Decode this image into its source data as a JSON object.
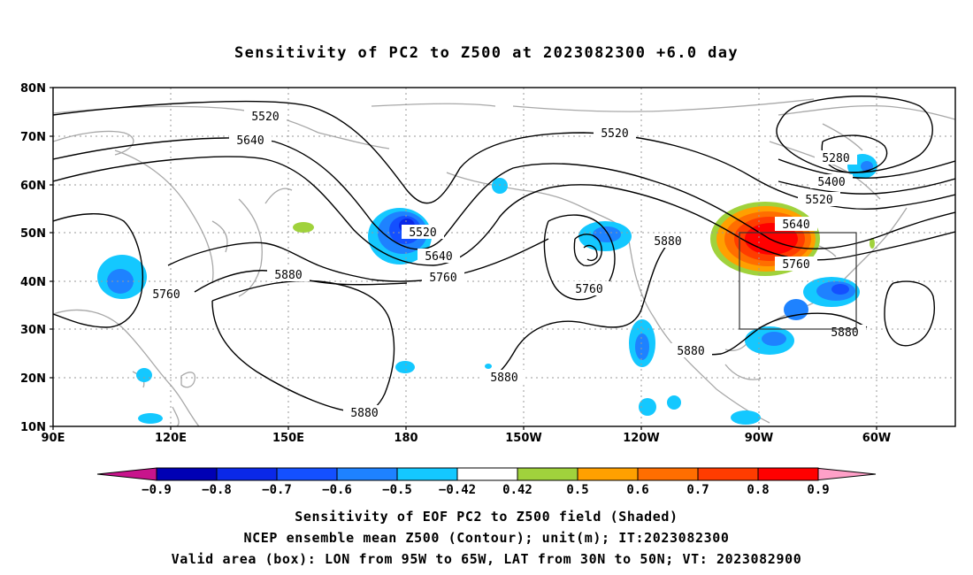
{
  "title": "Sensitivity of PC2 to Z500 at 2023082300 +6.0 day",
  "axes": {
    "lat_labels": [
      "80N",
      "70N",
      "60N",
      "50N",
      "40N",
      "30N",
      "20N",
      "10N"
    ],
    "lon_labels": [
      "90E",
      "120E",
      "150E",
      "180",
      "150W",
      "120W",
      "90W",
      "60W"
    ]
  },
  "contour_labels": {
    "c5520a": "5520",
    "c5640a": "5640",
    "c5520b": "5520",
    "c5520c": "5520",
    "c5640b": "5640",
    "c5760a": "5760",
    "c5760b": "5760",
    "c5760c": "5760",
    "c5880a": "5880",
    "c5880b": "5880",
    "c5880c": "5880",
    "c5880d": "5880",
    "c5880e": "5880",
    "c5880f": "5880",
    "c5280": "5280",
    "c5400": "5400",
    "c5520d": "5520",
    "c5640c": "5640",
    "c5760d": "5760"
  },
  "colorbar": {
    "labels": [
      "−0.9",
      "−0.8",
      "−0.7",
      "−0.6",
      "−0.5",
      "−0.42",
      "0.42",
      "0.5",
      "0.6",
      "0.7",
      "0.8",
      "0.9"
    ],
    "colors": [
      "#0000b4",
      "#0a28e8",
      "#1450ff",
      "#1e82ff",
      "#14c8ff",
      "#ffffff",
      "#a0d23c",
      "#ffa000",
      "#ff6e00",
      "#ff3c00",
      "#ff0000"
    ],
    "low_end_color": "#c8148c",
    "high_end_color": "#ffa0c8"
  },
  "colors": {
    "coastline": "#a8a8a8",
    "grid": "#9a9a9a",
    "contour": "#000000",
    "box": "#333333"
  },
  "caption": {
    "line1": "Sensitivity of EOF PC2 to Z500 field (Shaded)",
    "line2": "NCEP ensemble mean Z500 (Contour); unit(m); IT:2023082300",
    "line3": "Valid area (box): LON from 95W to 65W, LAT from 30N to 50N; VT: 2023082900"
  },
  "valid_box": {
    "lon_range": [
      "95W",
      "65W"
    ],
    "lat_range": [
      "30N",
      "50N"
    ]
  }
}
